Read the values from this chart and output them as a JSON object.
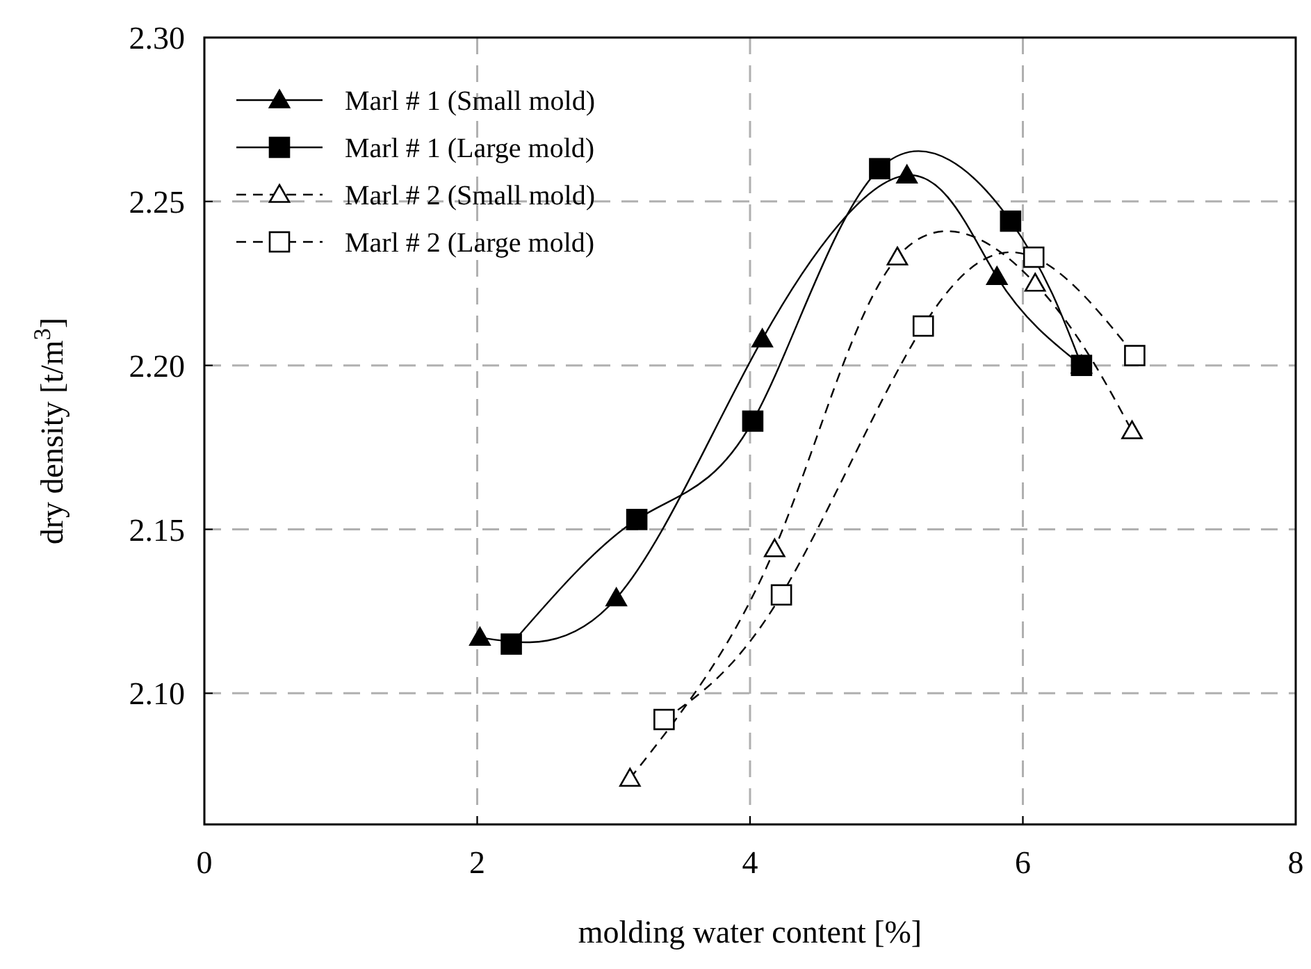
{
  "chart_data": {
    "type": "line",
    "xlabel": "molding water content [%]",
    "ylabel": "dry density [t/m$^{3}$]",
    "xlim": [
      0,
      8
    ],
    "xticks": [
      0,
      2,
      4,
      6,
      8
    ],
    "ylim": [
      2.06,
      2.3
    ],
    "yticks": [
      {
        "value": 2.1,
        "label": "2.10"
      },
      {
        "value": 2.15,
        "label": "2.15"
      },
      {
        "value": 2.2,
        "label": "2.20"
      },
      {
        "value": 2.25,
        "label": "2.25"
      },
      {
        "value": 2.3,
        "label": "2.30"
      }
    ],
    "grid": true,
    "legend": "top left",
    "series": [
      {
        "name": "Marl # 1 (Small mold)",
        "color": "#000000",
        "marker": "triangle",
        "line_style": "solid",
        "x": [
          2.02,
          3.02,
          4.09,
          5.15,
          5.81,
          6.43
        ],
        "values": [
          2.117,
          2.129,
          2.208,
          2.258,
          2.227,
          2.2
        ]
      },
      {
        "name": "Marl # 1 (Large mold)",
        "color": "#000000",
        "marker": "square",
        "line_style": "solid",
        "x": [
          2.25,
          3.17,
          4.02,
          4.95,
          5.91,
          6.43
        ],
        "values": [
          2.115,
          2.153,
          2.183,
          2.26,
          2.244,
          2.2
        ]
      },
      {
        "name": "Marl # 2 (Small mold)",
        "color": "#000000",
        "marker": "triangle",
        "line_style": "dashed",
        "x": [
          3.12,
          4.18,
          5.08,
          6.09,
          6.8
        ],
        "values": [
          2.074,
          2.144,
          2.233,
          2.225,
          2.18
        ]
      },
      {
        "name": "Marl # 2 (Large mold)",
        "color": "#000000",
        "marker": "square",
        "line_style": "dashed",
        "x": [
          3.37,
          4.23,
          5.27,
          6.08,
          6.82
        ],
        "values": [
          2.092,
          2.13,
          2.212,
          2.233,
          2.203
        ]
      }
    ]
  }
}
